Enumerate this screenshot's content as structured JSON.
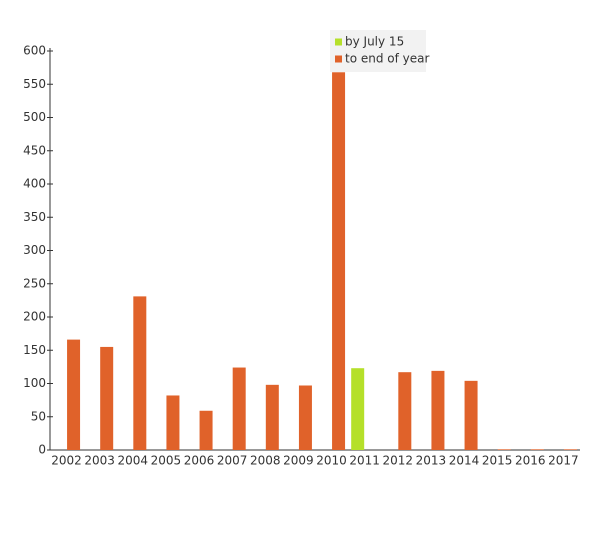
{
  "chart_data": {
    "type": "bar",
    "categories": [
      "2002",
      "2003",
      "2004",
      "2005",
      "2006",
      "2007",
      "2008",
      "2009",
      "2010",
      "2011",
      "2012",
      "2013",
      "2014",
      "2015",
      "2016",
      "2017"
    ],
    "series": [
      {
        "name": "by July 15",
        "color": "#b5e02a",
        "values": [
          null,
          null,
          null,
          null,
          null,
          null,
          null,
          null,
          null,
          123,
          null,
          null,
          null,
          null,
          null,
          null
        ]
      },
      {
        "name": "to end of year",
        "color": "#e0622a",
        "values": [
          166,
          155,
          231,
          82,
          59,
          124,
          98,
          97,
          568,
          null,
          117,
          119,
          104,
          1,
          1,
          1
        ]
      }
    ],
    "ylim": [
      0,
      600
    ],
    "yticks": [
      0,
      50,
      100,
      150,
      200,
      250,
      300,
      350,
      400,
      450,
      500,
      550,
      600
    ]
  }
}
